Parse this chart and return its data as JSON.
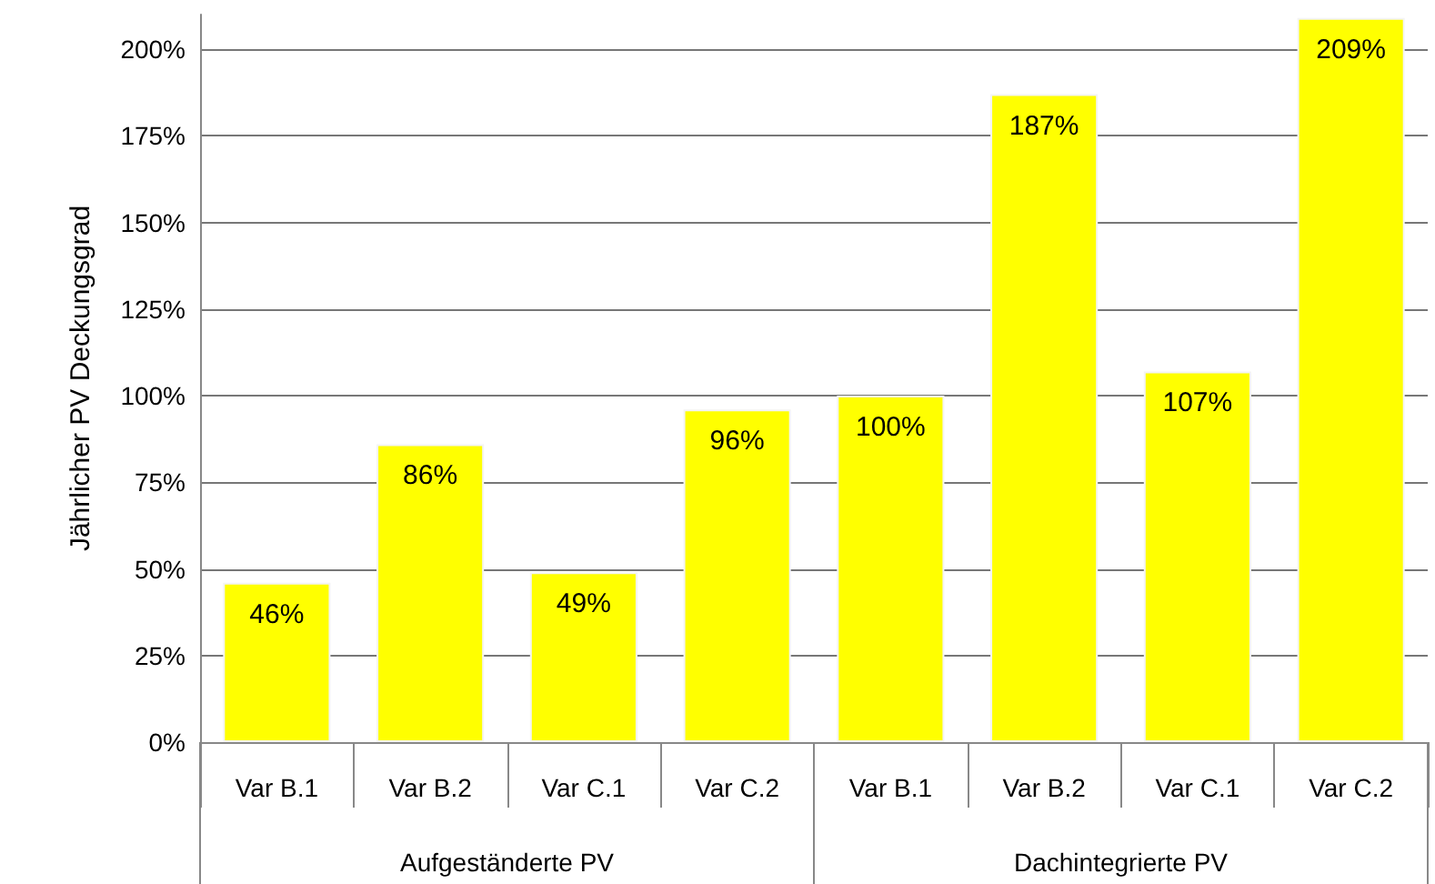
{
  "chart_data": {
    "type": "bar",
    "ylabel": "Jährlicher PV Deckungsgrad",
    "categories": [
      "Var B.1",
      "Var B.2",
      "Var C.1",
      "Var C.2",
      "Var B.1",
      "Var B.2",
      "Var C.1",
      "Var C.2"
    ],
    "values": [
      46,
      86,
      49,
      96,
      100,
      187,
      107,
      209
    ],
    "value_labels": [
      "46%",
      "86%",
      "49%",
      "96%",
      "100%",
      "187%",
      "107%",
      "209%"
    ],
    "color": "#ffff00",
    "ylim": [
      0,
      210
    ],
    "yticks": [
      {
        "value": 0,
        "label": "0%"
      },
      {
        "value": 25,
        "label": "25%"
      },
      {
        "value": 50,
        "label": "50%"
      },
      {
        "value": 75,
        "label": "75%"
      },
      {
        "value": 100,
        "label": "100%"
      },
      {
        "value": 125,
        "label": "125%"
      },
      {
        "value": 150,
        "label": "150%"
      },
      {
        "value": 175,
        "label": "175%"
      },
      {
        "value": 200,
        "label": "200%"
      }
    ],
    "grid": "y",
    "annotations": [
      "Aufgeständerte PV",
      "Dachintegrierte PV"
    ]
  }
}
